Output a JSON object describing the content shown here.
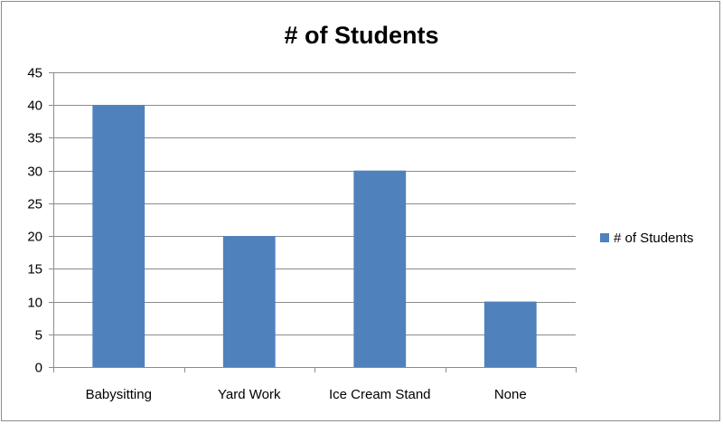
{
  "chart_data": {
    "type": "bar",
    "title": "# of Students",
    "categories": [
      "Babysitting",
      "Yard Work",
      "Ice Cream Stand",
      "None"
    ],
    "series": [
      {
        "name": "# of Students",
        "values": [
          40,
          20,
          30,
          10
        ],
        "color": "#4F81BD"
      }
    ],
    "xlabel": "",
    "ylabel": "",
    "ylim": [
      0,
      45
    ],
    "yticks": [
      0,
      5,
      10,
      15,
      20,
      25,
      30,
      35,
      40,
      45
    ],
    "grid": true,
    "legend": "right"
  }
}
